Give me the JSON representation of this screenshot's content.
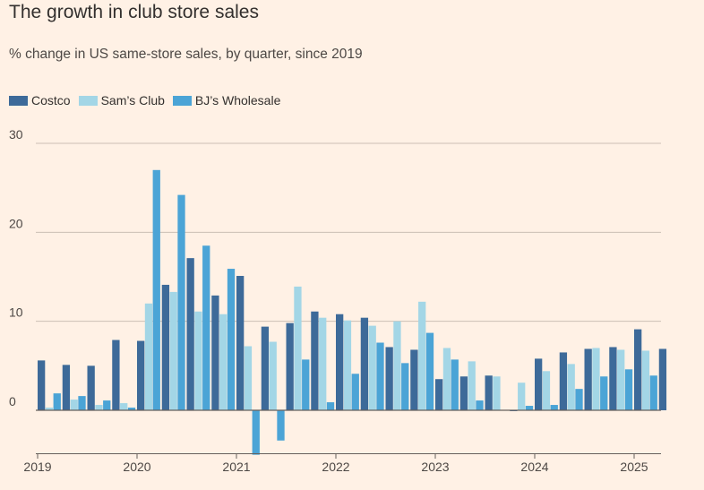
{
  "title": "The growth in club store sales",
  "subtitle": "% change in US same-store sales, by quarter, since 2019",
  "colors": {
    "background": "#fff1e5",
    "grid": "#ccbfb5",
    "zero_line": "#66605c",
    "text": "#33302e"
  },
  "legend": [
    {
      "label": "Costco",
      "color": "#3d6a99"
    },
    {
      "label": "Sam’s Club",
      "color": "#a3d6e6"
    },
    {
      "label": "BJ’s Wholesale",
      "color": "#4ba4d6"
    }
  ],
  "chart_data": {
    "type": "bar",
    "title": "The growth in club store sales",
    "subtitle": "% change in US same-store sales, by quarter, since 2019",
    "xlabel": "",
    "ylabel": "",
    "ylim": [
      -5,
      30
    ],
    "yticks": [
      0,
      10,
      20,
      30
    ],
    "xticks": [
      "2019",
      "2020",
      "2021",
      "2022",
      "2023",
      "2024",
      "2025"
    ],
    "grid": true,
    "legend_position": "top-left",
    "categories": [
      "Q1 2019",
      "Q2 2019",
      "Q3 2019",
      "Q4 2019",
      "Q1 2020",
      "Q2 2020",
      "Q3 2020",
      "Q4 2020",
      "Q1 2021",
      "Q2 2021",
      "Q3 2021",
      "Q4 2021",
      "Q1 2022",
      "Q2 2022",
      "Q3 2022",
      "Q4 2022",
      "Q1 2023",
      "Q2 2023",
      "Q3 2023",
      "Q4 2023",
      "Q1 2024",
      "Q2 2024",
      "Q3 2024",
      "Q4 2024",
      "Q1 2025",
      "Q2 2025"
    ],
    "series": [
      {
        "name": "Costco",
        "color": "#3d6a99",
        "values": [
          5.6,
          5.1,
          5.0,
          7.9,
          7.8,
          14.1,
          17.1,
          12.9,
          15.1,
          9.4,
          9.8,
          11.1,
          10.8,
          10.4,
          7.1,
          6.8,
          3.5,
          3.8,
          3.9,
          -0.1,
          5.8,
          6.5,
          6.9,
          7.1,
          9.1,
          6.9
        ]
      },
      {
        "name": "Sam’s Club",
        "color": "#a3d6e6",
        "values": [
          0.3,
          1.2,
          0.6,
          0.8,
          12.0,
          13.3,
          11.1,
          10.8,
          7.2,
          7.7,
          13.9,
          10.4,
          10.1,
          9.5,
          10.0,
          12.2,
          7.0,
          5.5,
          3.8,
          3.1,
          4.4,
          5.2,
          7.0,
          6.8,
          6.7,
          0
        ]
      },
      {
        "name": "BJ’s Wholesale",
        "color": "#4ba4d6",
        "values": [
          1.9,
          1.6,
          1.1,
          0.3,
          27.0,
          24.2,
          18.5,
          15.9,
          -5.0,
          -3.4,
          5.7,
          0.9,
          4.1,
          7.6,
          5.3,
          8.7,
          5.7,
          1.1,
          0,
          0.5,
          0.6,
          2.4,
          3.8,
          4.6,
          3.9,
          0
        ]
      }
    ]
  }
}
